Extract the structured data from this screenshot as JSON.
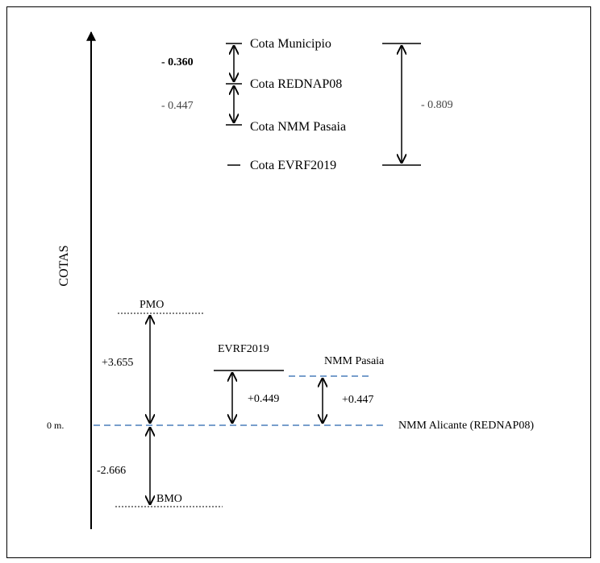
{
  "upper_section": {
    "levels": {
      "municipio": "Cota Municipio",
      "rednap": "Cota REDNAP08",
      "nmm_pasaia": "Cota NMM Pasaia",
      "evrf": "Cota EVRF2019"
    },
    "differences": {
      "municipio_rednap": "- 0.360",
      "rednap_pasaia": "- 0.447",
      "municipio_evrf": "- 0.809"
    }
  },
  "axis": {
    "label": "COTAS",
    "zero_label": "0 m."
  },
  "lower_section": {
    "levels": {
      "pmo": "PMO",
      "bmo": "BMO",
      "evrf": "EVRF2019",
      "nmm_pasaia": "NMM Pasaia",
      "nmm_alicante": "NMM Alicante (REDNAP08)"
    },
    "differences": {
      "pmo": "+3.655",
      "bmo": "-2.666",
      "evrf": "+0.449",
      "nmm_pasaia": "+0.447"
    }
  },
  "colors": {
    "line": "#000000",
    "dashed_reference": "#4a7ebb"
  }
}
